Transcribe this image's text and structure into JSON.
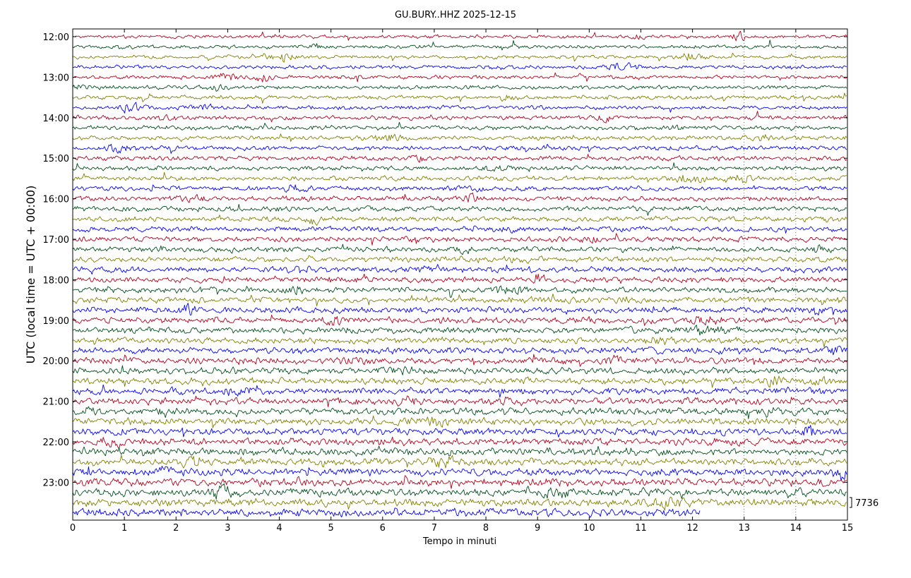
{
  "chart_data": {
    "type": "line",
    "title": "GU.BURY..HHZ 2025-12-15",
    "xlabel": "Tempo in minuti",
    "ylabel": "UTC (local time = UTC + 00:00)",
    "xlim": [
      0,
      15
    ],
    "x_ticks": [
      "0",
      "1",
      "2",
      "3",
      "4",
      "5",
      "6",
      "7",
      "8",
      "9",
      "10",
      "11",
      "12",
      "13",
      "14",
      "15"
    ],
    "y_ticks": [
      "12:00",
      "13:00",
      "14:00",
      "15:00",
      "16:00",
      "17:00",
      "18:00",
      "19:00",
      "20:00",
      "21:00",
      "22:00",
      "23:00"
    ],
    "start_hour": 12,
    "rows_per_hour": 4,
    "row_count": 48,
    "last_row_end_minute": 12.15,
    "colors": [
      "#b2001b",
      "#004d1a",
      "#808000",
      "#0000ff"
    ],
    "scale_label": "7736",
    "grid": true,
    "vertical_grid_minutes": [
      13,
      14
    ]
  }
}
